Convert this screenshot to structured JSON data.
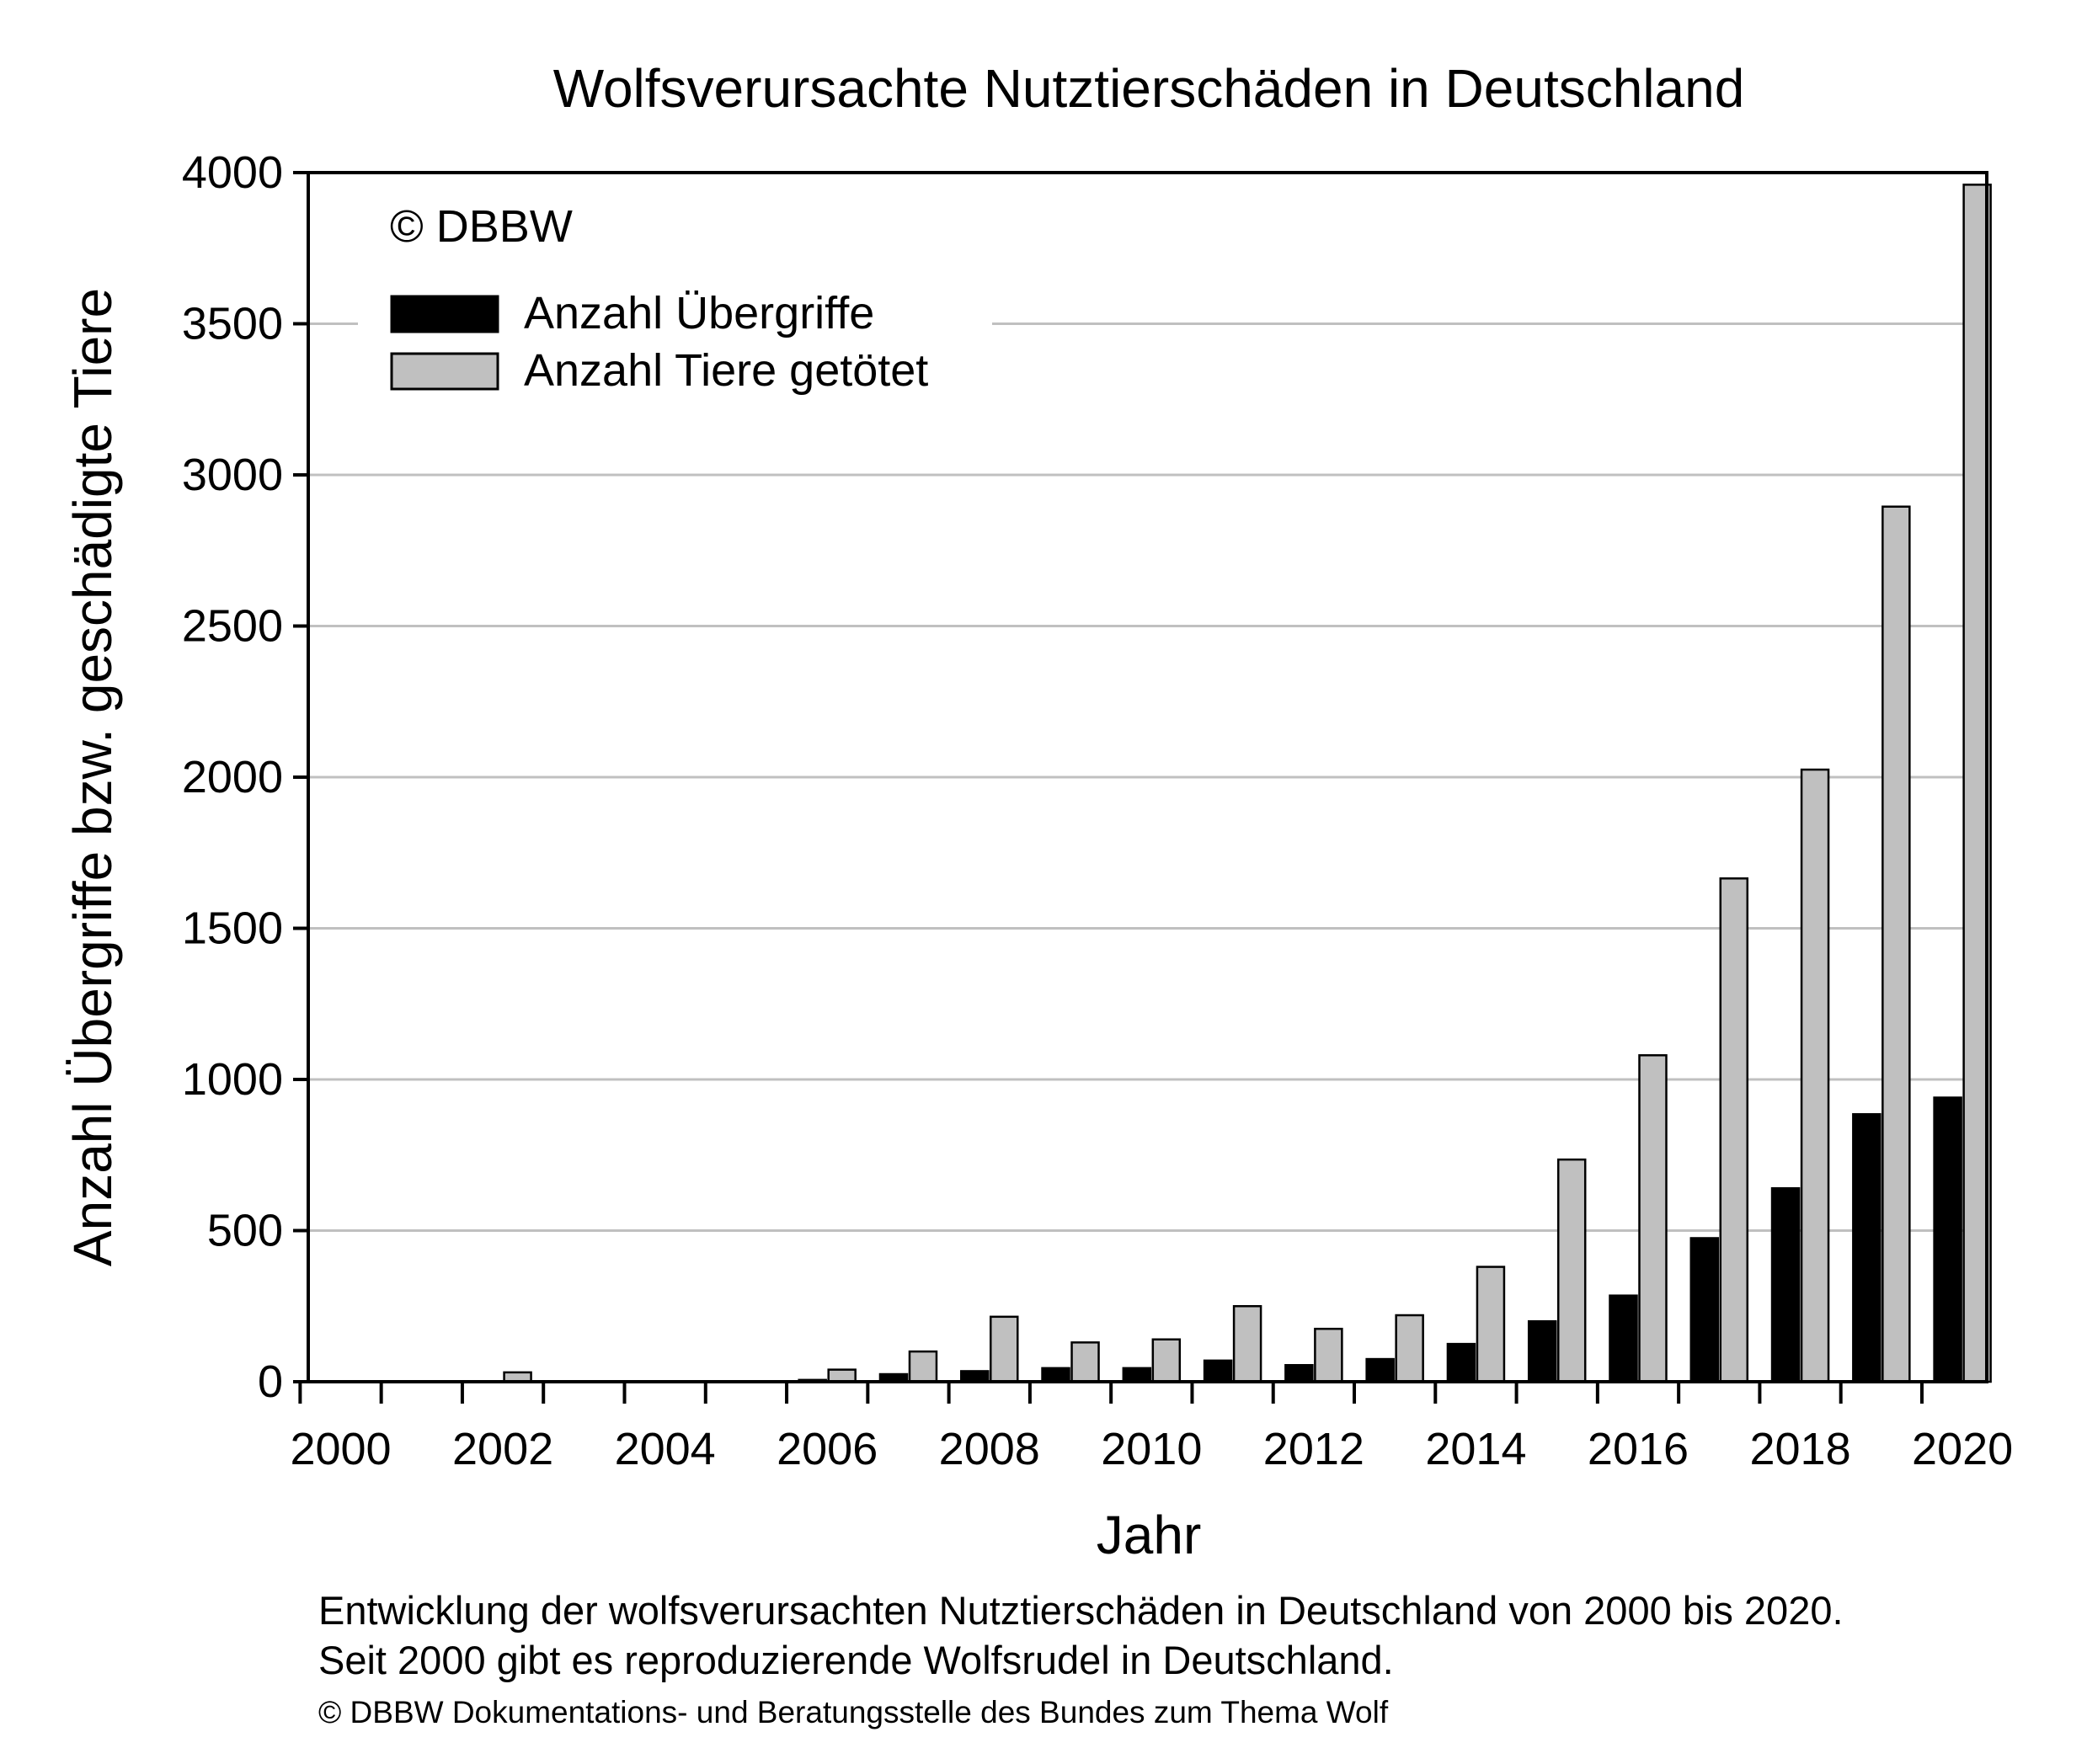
{
  "chart_data": {
    "type": "bar",
    "title": "Wolfsverursachte Nutztierschäden in Deutschland",
    "xlabel": "Jahr",
    "ylabel": "Anzahl Übergriffe bzw. geschädigte Tiere",
    "watermark": "© DBBW",
    "ylim": [
      0,
      4000
    ],
    "y_ticks": [
      0,
      500,
      1000,
      1500,
      2000,
      2500,
      3000,
      3500,
      4000
    ],
    "x_tick_labels": [
      "2000",
      "2002",
      "2004",
      "2006",
      "2008",
      "2010",
      "2012",
      "2014",
      "2016",
      "2018",
      "2020"
    ],
    "grid": "horizontal",
    "legend_position": "top-left",
    "categories": [
      "2000",
      "2001",
      "2002",
      "2003",
      "2004",
      "2005",
      "2006",
      "2007",
      "2008",
      "2009",
      "2010",
      "2011",
      "2012",
      "2013",
      "2014",
      "2015",
      "2016",
      "2017",
      "2018",
      "2019",
      "2020"
    ],
    "series": [
      {
        "name": "Anzahl Übergriffe",
        "color": "#000000",
        "values": [
          0,
          0,
          0,
          0,
          0,
          0,
          6,
          25,
          35,
          45,
          45,
          70,
          55,
          75,
          125,
          200,
          285,
          475,
          640,
          885,
          940
        ]
      },
      {
        "name": "Anzahl Tiere getötet",
        "color": "#c0c0c0",
        "values": [
          0,
          0,
          31,
          0,
          0,
          0,
          40,
          100,
          215,
          130,
          140,
          250,
          175,
          220,
          380,
          735,
          1080,
          1665,
          2025,
          2895,
          3960
        ]
      }
    ]
  },
  "captions": {
    "line1": "Entwicklung der wolfsverursachten Nutztierschäden in Deutschland von 2000 bis 2020.",
    "line2": "Seit 2000 gibt es reproduzierende Wolfsrudel in Deutschland.",
    "line3": "© DBBW Dokumentations- und Beratungsstelle des Bundes zum Thema Wolf"
  }
}
